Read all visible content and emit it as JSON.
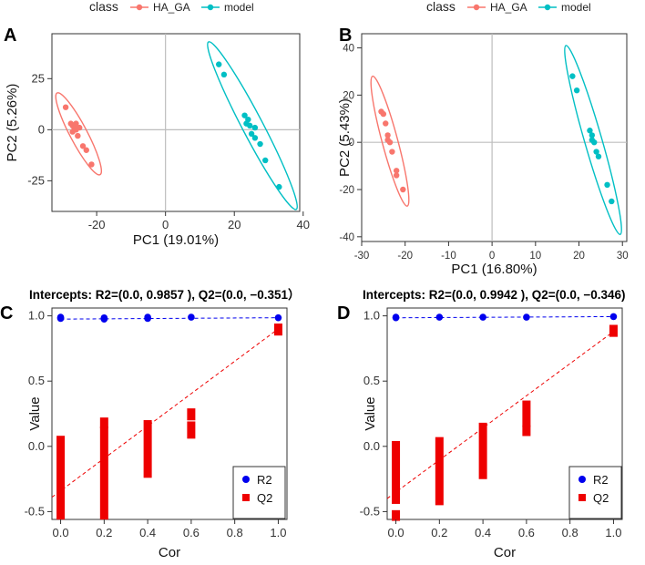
{
  "chart_data": [
    {
      "type": "scatter",
      "panel_letter": "A",
      "legend_title": "class",
      "legend": [
        {
          "name": "HA_GA",
          "color": "#F8766D"
        },
        {
          "name": "model",
          "color": "#00BFC4"
        }
      ],
      "xlabel": "PC1 (19.01%)",
      "ylabel": "PC2 (5.26%)",
      "xlim": [
        -33,
        39
      ],
      "ylim": [
        -40,
        47
      ],
      "xticks": [
        {
          "v": -20,
          "t": "-20"
        },
        {
          "v": 0,
          "t": "0"
        },
        {
          "v": 20,
          "t": "20"
        },
        {
          "v": 40,
          "t": "40"
        }
      ],
      "yticks": [
        {
          "v": -25,
          "t": "-25"
        },
        {
          "v": 0,
          "t": "0"
        },
        {
          "v": 25,
          "t": "25"
        }
      ],
      "series": [
        {
          "name": "HA_GA",
          "color": "#F8766D",
          "points": [
            [
              -29,
              11
            ],
            [
              -27.5,
              3
            ],
            [
              -27,
              2
            ],
            [
              -26.5,
              1
            ],
            [
              -26,
              0
            ],
            [
              -27,
              -1
            ],
            [
              -25.5,
              -3
            ],
            [
              -24,
              -8
            ],
            [
              -23,
              -10
            ],
            [
              -21.5,
              -17
            ],
            [
              -26,
              3
            ],
            [
              -25,
              1
            ]
          ],
          "ellipse": {
            "x0": -31.5,
            "y0": 18,
            "x1": -19,
            "y1": -22,
            "w": 2.5
          }
        },
        {
          "name": "model",
          "color": "#00BFC4",
          "points": [
            [
              15.5,
              32
            ],
            [
              17,
              27
            ],
            [
              23,
              7
            ],
            [
              24,
              5
            ],
            [
              24.5,
              2
            ],
            [
              25,
              -2
            ],
            [
              26,
              -4
            ],
            [
              27.5,
              -7
            ],
            [
              29,
              -15
            ],
            [
              33,
              -28
            ],
            [
              26,
              1
            ],
            [
              23.5,
              3
            ]
          ],
          "ellipse": {
            "x0": 12.5,
            "y0": 43,
            "x1": 38,
            "y1": -39,
            "w": 3
          }
        }
      ]
    },
    {
      "type": "scatter",
      "panel_letter": "B",
      "legend_title": "class",
      "legend": [
        {
          "name": "HA_GA",
          "color": "#F8766D"
        },
        {
          "name": "model",
          "color": "#00BFC4"
        }
      ],
      "xlabel": "PC1 (16.80%)",
      "ylabel": "PC2 (5.43%)",
      "xlim": [
        -30,
        31
      ],
      "ylim": [
        -42,
        46
      ],
      "xticks": [
        {
          "v": -30,
          "t": "-30"
        },
        {
          "v": -20,
          "t": "-20"
        },
        {
          "v": -10,
          "t": "-10"
        },
        {
          "v": 0,
          "t": "0"
        },
        {
          "v": 10,
          "t": "10"
        },
        {
          "v": 20,
          "t": "20"
        },
        {
          "v": 30,
          "t": "30"
        }
      ],
      "yticks": [
        {
          "v": -40,
          "t": "-40"
        },
        {
          "v": -20,
          "t": "-20"
        },
        {
          "v": 0,
          "t": "0"
        },
        {
          "v": 20,
          "t": "20"
        },
        {
          "v": 40,
          "t": "40"
        }
      ],
      "series": [
        {
          "name": "HA_GA",
          "color": "#F8766D",
          "points": [
            [
              -25.5,
              13
            ],
            [
              -25,
              12
            ],
            [
              -24.5,
              8
            ],
            [
              -24,
              3
            ],
            [
              -23.5,
              0
            ],
            [
              -23,
              -4
            ],
            [
              -22,
              -12
            ],
            [
              -22,
              -14
            ],
            [
              -20.5,
              -20
            ],
            [
              -24,
              1
            ]
          ],
          "ellipse": {
            "x0": -27.5,
            "y0": 28,
            "x1": -19.5,
            "y1": -27,
            "w": 1.8
          }
        },
        {
          "name": "model",
          "color": "#00BFC4",
          "points": [
            [
              18.5,
              28
            ],
            [
              19.5,
              22
            ],
            [
              22.5,
              5
            ],
            [
              23,
              3
            ],
            [
              23.5,
              0
            ],
            [
              24,
              -4
            ],
            [
              24.5,
              -6
            ],
            [
              26.5,
              -18
            ],
            [
              27.5,
              -25
            ],
            [
              23,
              1
            ]
          ],
          "ellipse": {
            "x0": 17,
            "y0": 41,
            "x1": 29.5,
            "y1": -39,
            "w": 2
          }
        }
      ]
    },
    {
      "type": "scatter",
      "panel_letter": "C",
      "title": "Intercepts: R2=(0.0, 0.9857 ), Q2=(0.0, −0.351）",
      "xlabel": "Cor",
      "ylabel": "Value",
      "xlim": [
        -0.04,
        1.04
      ],
      "ylim": [
        -0.56,
        1.06
      ],
      "xticks": [
        {
          "v": 0,
          "t": "0.0"
        },
        {
          "v": 0.2,
          "t": "0.2"
        },
        {
          "v": 0.4,
          "t": "0.4"
        },
        {
          "v": 0.6,
          "t": "0.6"
        },
        {
          "v": 0.8,
          "t": "0.8"
        },
        {
          "v": 1.0,
          "t": "1.0"
        }
      ],
      "yticks": [
        {
          "v": -0.5,
          "t": "-0.5"
        },
        {
          "v": 0,
          "t": "0.0"
        },
        {
          "v": 0.5,
          "t": "0.5"
        },
        {
          "v": 1.0,
          "t": "1.0"
        }
      ],
      "legend": [
        {
          "name": "R2",
          "color": "#0000EE",
          "shape": "circle"
        },
        {
          "name": "Q2",
          "color": "#EE0000",
          "shape": "square"
        }
      ],
      "r2_points": [
        [
          0,
          0.98
        ],
        [
          0,
          0.985
        ],
        [
          0,
          0.99
        ],
        [
          0.2,
          0.975
        ],
        [
          0.2,
          0.98
        ],
        [
          0.2,
          0.985
        ],
        [
          0.4,
          0.98
        ],
        [
          0.4,
          0.99
        ],
        [
          0.6,
          0.99
        ],
        [
          1.0,
          0.9857
        ]
      ],
      "q2_bars": [
        {
          "x": 0.0,
          "ranges": [
            [
              -0.54,
              0.06
            ]
          ]
        },
        {
          "x": 0.2,
          "ranges": [
            [
              -0.54,
              0.13
            ],
            [
              0.16,
              0.2
            ]
          ]
        },
        {
          "x": 0.4,
          "ranges": [
            [
              -0.22,
              0.18
            ]
          ]
        },
        {
          "x": 0.6,
          "ranges": [
            [
              0.08,
              0.17
            ],
            [
              0.22,
              0.27
            ]
          ]
        },
        {
          "x": 1.0,
          "ranges": [
            [
              0.87,
              0.92
            ]
          ]
        }
      ],
      "r2_line": [
        [
          0,
          0.975
        ],
        [
          1.0,
          0.9857
        ]
      ],
      "q2_line": [
        [
          -0.04,
          -0.39
        ],
        [
          1.0,
          0.9
        ]
      ]
    },
    {
      "type": "scatter",
      "panel_letter": "D",
      "title": "Intercepts: R2=(0.0, 0.9942 ), Q2=(0.0, −0.346)",
      "xlabel": "Cor",
      "ylabel": "Value",
      "xlim": [
        -0.04,
        1.04
      ],
      "ylim": [
        -0.56,
        1.06
      ],
      "xticks": [
        {
          "v": 0,
          "t": "0.0"
        },
        {
          "v": 0.2,
          "t": "0.2"
        },
        {
          "v": 0.4,
          "t": "0.4"
        },
        {
          "v": 0.6,
          "t": "0.6"
        },
        {
          "v": 0.8,
          "t": "0.8"
        },
        {
          "v": 1.0,
          "t": "1.0"
        }
      ],
      "yticks": [
        {
          "v": -0.5,
          "t": "-0.5"
        },
        {
          "v": 0,
          "t": "0.0"
        },
        {
          "v": 0.5,
          "t": "0.5"
        },
        {
          "v": 1.0,
          "t": "1.0"
        }
      ],
      "legend": [
        {
          "name": "R2",
          "color": "#0000EE",
          "shape": "circle"
        },
        {
          "name": "Q2",
          "color": "#EE0000",
          "shape": "square"
        }
      ],
      "r2_points": [
        [
          0,
          0.985
        ],
        [
          0,
          0.99
        ],
        [
          0.2,
          0.99
        ],
        [
          0.4,
          0.99
        ],
        [
          0.6,
          0.99
        ],
        [
          1.0,
          0.9942
        ]
      ],
      "q2_bars": [
        {
          "x": 0.0,
          "ranges": [
            [
              -0.42,
              0.02
            ],
            [
              -0.55,
              -0.51
            ]
          ]
        },
        {
          "x": 0.2,
          "ranges": [
            [
              -0.43,
              0.05
            ]
          ]
        },
        {
          "x": 0.4,
          "ranges": [
            [
              -0.23,
              0.16
            ]
          ]
        },
        {
          "x": 0.6,
          "ranges": [
            [
              0.1,
              0.14
            ],
            [
              0.17,
              0.33
            ]
          ]
        },
        {
          "x": 1.0,
          "ranges": [
            [
              0.86,
              0.91
            ]
          ]
        }
      ],
      "r2_line": [
        [
          0,
          0.985
        ],
        [
          1.0,
          0.9942
        ]
      ],
      "q2_line": [
        [
          -0.04,
          -0.4
        ],
        [
          1.0,
          0.88
        ]
      ]
    }
  ]
}
